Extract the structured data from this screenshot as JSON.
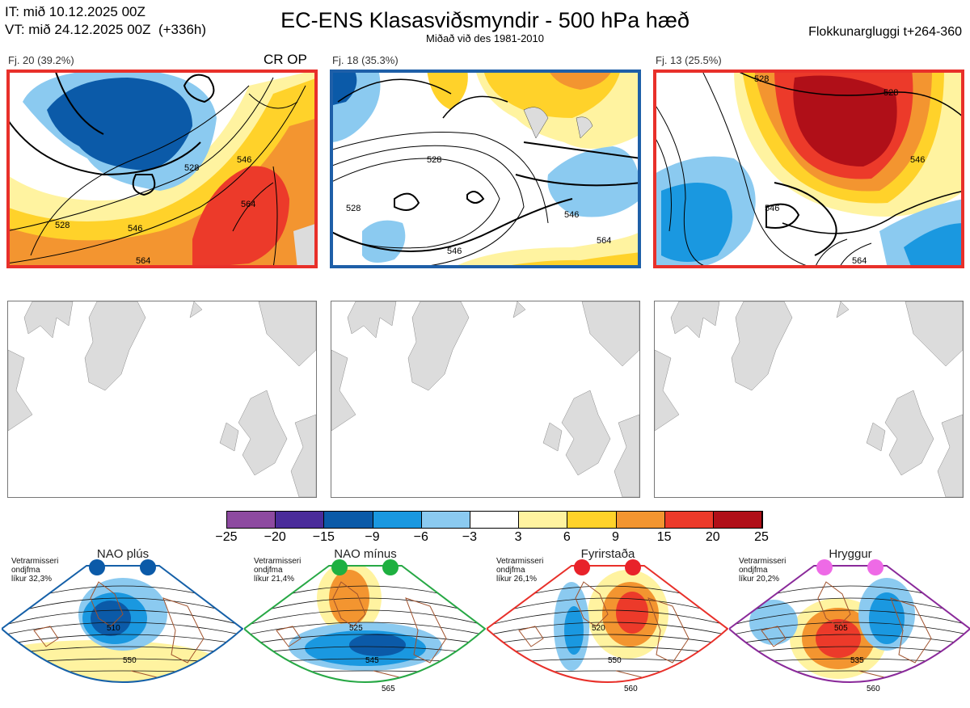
{
  "header": {
    "it_line": "IT: mið 10.12.2025 00Z",
    "vt_line": "VT: mið 24.12.2025 00Z  (+336h)",
    "title": "EC-ENS Klasasviðsmyndir - 500 hPa hæð",
    "subtitle": "Miðað við des 1981-2010",
    "window": "Flokkunargluggi t+264-360"
  },
  "panels": [
    {
      "label": "Fj. 20 (39.2%)",
      "tag": "CR OP",
      "border": "#e8302a",
      "contours": [
        "528",
        "546",
        "564",
        "528",
        "546",
        "564"
      ]
    },
    {
      "label": "Fj. 18 (35.3%)",
      "tag": "",
      "border": "#1e5fa8",
      "contours": [
        "528",
        "546",
        "564",
        "528",
        "546"
      ]
    },
    {
      "label": "Fj. 13 (25.5%)",
      "tag": "",
      "border": "#e8302a",
      "contours": [
        "528",
        "528",
        "546",
        "546",
        "564"
      ]
    }
  ],
  "colorbar": {
    "colors": [
      "#8d4aa0",
      "#4a2c9a",
      "#0b5aa8",
      "#1a98e0",
      "#8bcaf0",
      "#ffffff",
      "#fff3a0",
      "#ffd22a",
      "#f39530",
      "#ec3a2a",
      "#b00f18"
    ],
    "ticks": [
      "−25",
      "−20",
      "−15",
      "−9",
      "−6",
      "−3",
      "3",
      "6",
      "9",
      "15",
      "20",
      "25"
    ]
  },
  "regimes": [
    {
      "title": "NAO plús",
      "note": [
        "Vetrarmisseri",
        "ondjfma",
        "líkur 32,3%"
      ],
      "frame": "#1560a8",
      "dot": "#0b5aa8",
      "labels": [
        "510",
        "550"
      ]
    },
    {
      "title": "NAO mínus",
      "note": [
        "Vetrarmisseri",
        "ondjfma",
        "líkur 21,4%"
      ],
      "frame": "#27a845",
      "dot": "#1eb040",
      "labels": [
        "525",
        "545",
        "565"
      ]
    },
    {
      "title": "Fyrirstaða",
      "note": [
        "Vetrarmisseri",
        "ondjfma",
        "líkur 26,1%"
      ],
      "frame": "#e8302a",
      "dot": "#e8222a",
      "labels": [
        "520",
        "550",
        "560"
      ]
    },
    {
      "title": "Hryggur",
      "note": [
        "Vetrarmisseri",
        "ondjfma",
        "líkur 20,2%"
      ],
      "frame": "#8a2a9a",
      "dot": "#ee6ae6",
      "labels": [
        "505",
        "535",
        "560"
      ]
    }
  ]
}
